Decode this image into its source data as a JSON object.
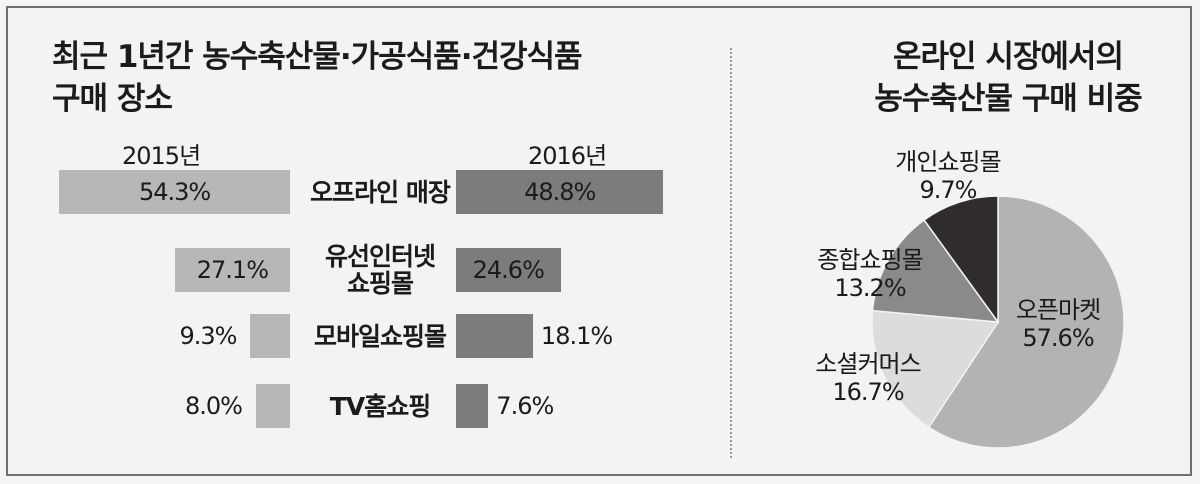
{
  "chart_data": [
    {
      "type": "bar",
      "title": "최근 1년간 농수축산물·가공식품·건강식품 구매 장소",
      "categories": [
        "오프라인 매장",
        "유선인터넷 쇼핑몰",
        "모바일쇼핑몰",
        "TV홈쇼핑"
      ],
      "series": [
        {
          "name": "2015년",
          "values": [
            54.3,
            27.1,
            9.3,
            8.0
          ],
          "labels": [
            "54.3%",
            "27.1%",
            "9.3%",
            "8.0%"
          ],
          "color": "#b7b7b5"
        },
        {
          "name": "2016년",
          "values": [
            48.8,
            24.6,
            18.1,
            7.6
          ],
          "labels": [
            "48.8%",
            "24.6%",
            "18.1%",
            "7.6%"
          ],
          "color": "#7c7c7a"
        }
      ],
      "unit": "%"
    },
    {
      "type": "pie",
      "title": "온라인 시장에서의 농수축산물 구매 비중",
      "slices": [
        {
          "label": "오픈마켓",
          "value": 57.6,
          "text": "57.6%",
          "color": "#b3b3b1"
        },
        {
          "label": "소셜커머스",
          "value": 16.7,
          "text": "16.7%",
          "color": "#dcdcda"
        },
        {
          "label": "종합쇼핑몰",
          "value": 13.2,
          "text": "13.2%",
          "color": "#8a8a88"
        },
        {
          "label": "개인쇼핑몰",
          "value": 9.7,
          "text": "9.7%",
          "color": "#302c2d"
        }
      ]
    }
  ],
  "left": {
    "title_line1": "최근 1년간 농수축산물·가공식품·건강식품",
    "title_line2": "구매 장소",
    "year_2015": "2015년",
    "year_2016": "2016년",
    "cat_lines": [
      [
        "오프라인 매장"
      ],
      [
        "유선인터넷",
        "쇼핑몰"
      ],
      [
        "모바일쇼핑몰"
      ],
      [
        "TV홈쇼핑"
      ]
    ]
  },
  "right": {
    "title_line1": "온라인 시장에서의",
    "title_line2": "농수축산물 구매 비중"
  }
}
